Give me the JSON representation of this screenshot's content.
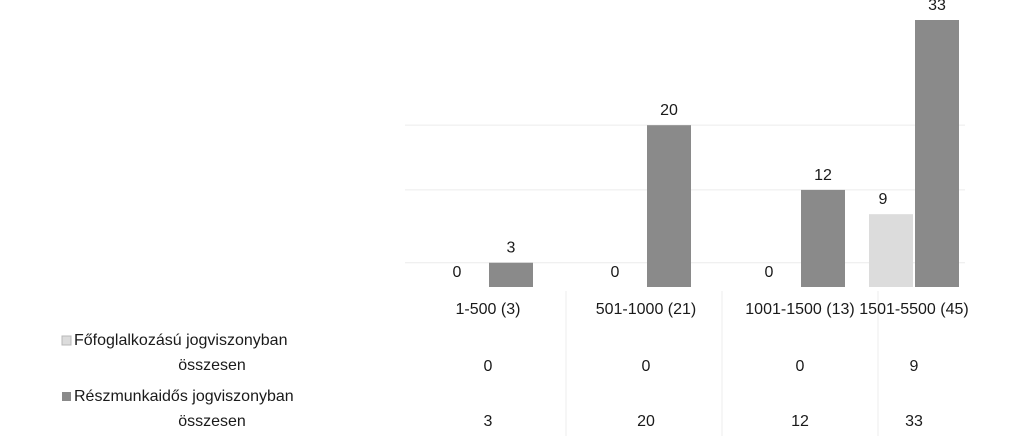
{
  "chart_data": {
    "type": "bar",
    "categories": [
      "1-500 (3)",
      "501-1000 (21)",
      "1001-1500 (13)",
      "1501-5500 (45)"
    ],
    "series": [
      {
        "name": "Főfoglalkozású  jogviszonyban összesen",
        "values": [
          0,
          0,
          0,
          9
        ]
      },
      {
        "name": "Részmunkaidős jogviszonyban összesen",
        "values": [
          3,
          20,
          12,
          33
        ]
      }
    ],
    "title": "",
    "xlabel": "",
    "ylabel": "",
    "ylim": [
      0,
      33
    ],
    "grid": true,
    "legend": "data-table-left",
    "data_table": true
  },
  "colors": {
    "series_main": "#dcdcdc",
    "series_part": "#8a8a8a",
    "grid": "#ececec",
    "text": "#1a1a1a"
  }
}
